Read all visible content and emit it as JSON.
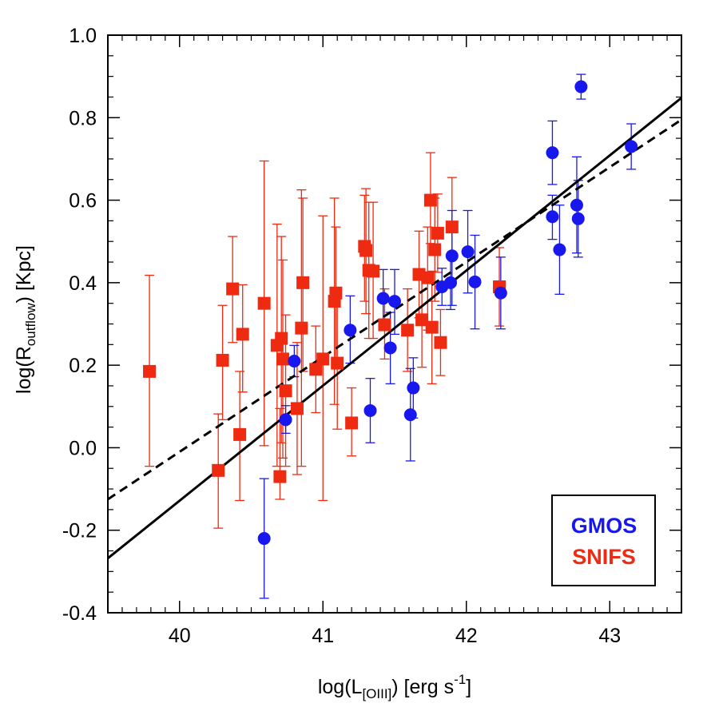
{
  "chart_data": {
    "type": "scatter",
    "title": "",
    "xlabel": {
      "prefix": "log(L",
      "sub": "[OIII]",
      "suffix": ") [erg s",
      "sup": "-1",
      "close": "]"
    },
    "ylabel": {
      "prefix": "log(R",
      "sub": "outflow",
      "suffix": ") [Kpc]"
    },
    "xlim": [
      39.5,
      43.5
    ],
    "ylim": [
      -0.4,
      1.0
    ],
    "x_ticks": [
      40,
      41,
      42,
      43
    ],
    "x_tick_labels": [
      "40",
      "41",
      "42",
      "43"
    ],
    "y_ticks": [
      -0.4,
      -0.2,
      0.0,
      0.2,
      0.4,
      0.6,
      0.8,
      1.0
    ],
    "y_tick_labels": [
      "-0.4",
      "-0.2",
      "0.0",
      "0.2",
      "0.4",
      "0.6",
      "0.8",
      "1.0"
    ],
    "grid": false,
    "legend": {
      "position": "bottom-right",
      "entries": [
        {
          "label": "GMOS",
          "color": "#1818ee"
        },
        {
          "label": "SNIFS",
          "color": "#ee2a10"
        }
      ]
    },
    "fit_lines": [
      {
        "name": "solid fit",
        "style": "solid",
        "color": "#000000",
        "x": [
          39.5,
          43.5
        ],
        "y": [
          -0.268,
          0.848
        ]
      },
      {
        "name": "dashed fit",
        "style": "dashed",
        "color": "#000000",
        "x": [
          39.5,
          43.5
        ],
        "y": [
          -0.125,
          0.795
        ]
      }
    ],
    "series": [
      {
        "name": "SNIFS",
        "marker": "square",
        "color": "#ee2a10",
        "points": [
          {
            "x": 39.79,
            "y": 0.185,
            "lo": -0.045,
            "hi": 0.418
          },
          {
            "x": 40.27,
            "y": -0.055,
            "lo": -0.195,
            "hi": 0.082
          },
          {
            "x": 40.3,
            "y": 0.212,
            "lo": 0.068,
            "hi": 0.345
          },
          {
            "x": 40.37,
            "y": 0.385,
            "lo": 0.255,
            "hi": 0.512
          },
          {
            "x": 40.42,
            "y": 0.032,
            "lo": -0.128,
            "hi": 0.185
          },
          {
            "x": 40.44,
            "y": 0.275,
            "lo": 0.135,
            "hi": 0.395
          },
          {
            "x": 40.59,
            "y": 0.35,
            "lo": 0.005,
            "hi": 0.695
          },
          {
            "x": 40.68,
            "y": 0.248,
            "lo": -0.045,
            "hi": 0.542
          },
          {
            "x": 40.7,
            "y": -0.07,
            "lo": -0.125,
            "hi": 0.095
          },
          {
            "x": 40.71,
            "y": 0.265,
            "lo": 0.012,
            "hi": 0.512
          },
          {
            "x": 40.72,
            "y": 0.215,
            "lo": -0.025,
            "hi": 0.455
          },
          {
            "x": 40.74,
            "y": 0.138,
            "lo": -0.045,
            "hi": 0.322
          },
          {
            "x": 40.82,
            "y": 0.095,
            "lo": -0.065,
            "hi": 0.255
          },
          {
            "x": 40.85,
            "y": 0.29,
            "lo": -0.045,
            "hi": 0.625
          },
          {
            "x": 40.86,
            "y": 0.4,
            "lo": 0.185,
            "hi": 0.605
          },
          {
            "x": 40.95,
            "y": 0.19,
            "lo": 0.085,
            "hi": 0.295
          },
          {
            "x": 41.0,
            "y": 0.215,
            "lo": -0.128,
            "hi": 0.562
          },
          {
            "x": 41.08,
            "y": 0.355,
            "lo": 0.105,
            "hi": 0.605
          },
          {
            "x": 41.09,
            "y": 0.375,
            "lo": 0.215,
            "hi": 0.535
          },
          {
            "x": 41.1,
            "y": 0.205,
            "lo": 0.045,
            "hi": 0.365
          },
          {
            "x": 41.2,
            "y": 0.06,
            "lo": -0.02,
            "hi": 0.145
          },
          {
            "x": 41.29,
            "y": 0.488,
            "lo": 0.355,
            "hi": 0.612
          },
          {
            "x": 41.3,
            "y": 0.478,
            "lo": 0.325,
            "hi": 0.628
          },
          {
            "x": 41.32,
            "y": 0.43,
            "lo": 0.265,
            "hi": 0.595
          },
          {
            "x": 41.35,
            "y": 0.428,
            "lo": 0.265,
            "hi": 0.595
          },
          {
            "x": 41.43,
            "y": 0.298,
            "lo": 0.215,
            "hi": 0.385
          },
          {
            "x": 41.59,
            "y": 0.285,
            "lo": 0.185,
            "hi": 0.385
          },
          {
            "x": 41.67,
            "y": 0.42,
            "lo": 0.315,
            "hi": 0.525
          },
          {
            "x": 41.69,
            "y": 0.31,
            "lo": 0.195,
            "hi": 0.422
          },
          {
            "x": 41.73,
            "y": 0.412,
            "lo": 0.285,
            "hi": 0.535
          },
          {
            "x": 41.75,
            "y": 0.6,
            "lo": 0.495,
            "hi": 0.715
          },
          {
            "x": 41.76,
            "y": 0.292,
            "lo": 0.155,
            "hi": 0.428
          },
          {
            "x": 41.78,
            "y": 0.48,
            "lo": 0.355,
            "hi": 0.605
          },
          {
            "x": 41.8,
            "y": 0.52,
            "lo": 0.425,
            "hi": 0.615
          },
          {
            "x": 41.82,
            "y": 0.255,
            "lo": 0.175,
            "hi": 0.335
          },
          {
            "x": 41.9,
            "y": 0.535,
            "lo": 0.405,
            "hi": 0.655
          },
          {
            "x": 42.23,
            "y": 0.39,
            "lo": 0.295,
            "hi": 0.485
          }
        ]
      },
      {
        "name": "GMOS",
        "marker": "circle",
        "color": "#1818ee",
        "points": [
          {
            "x": 40.59,
            "y": -0.22,
            "lo": -0.365,
            "hi": -0.075
          },
          {
            "x": 40.74,
            "y": 0.068,
            "lo": 0.035,
            "hi": 0.102
          },
          {
            "x": 40.8,
            "y": 0.21,
            "lo": 0.172,
            "hi": 0.248
          },
          {
            "x": 41.19,
            "y": 0.285,
            "lo": 0.205,
            "hi": 0.368
          },
          {
            "x": 41.33,
            "y": 0.09,
            "lo": 0.012,
            "hi": 0.168
          },
          {
            "x": 41.42,
            "y": 0.362,
            "lo": 0.295,
            "hi": 0.432
          },
          {
            "x": 41.47,
            "y": 0.242,
            "lo": 0.155,
            "hi": 0.328
          },
          {
            "x": 41.5,
            "y": 0.355,
            "lo": 0.275,
            "hi": 0.432
          },
          {
            "x": 41.61,
            "y": 0.08,
            "lo": -0.032,
            "hi": 0.192
          },
          {
            "x": 41.63,
            "y": 0.145,
            "lo": 0.072,
            "hi": 0.218
          },
          {
            "x": 41.83,
            "y": 0.39,
            "lo": 0.345,
            "hi": 0.435
          },
          {
            "x": 41.89,
            "y": 0.4,
            "lo": 0.335,
            "hi": 0.465
          },
          {
            "x": 41.9,
            "y": 0.465,
            "lo": 0.345,
            "hi": 0.575
          },
          {
            "x": 42.01,
            "y": 0.475,
            "lo": 0.375,
            "hi": 0.575
          },
          {
            "x": 42.06,
            "y": 0.402,
            "lo": 0.288,
            "hi": 0.515
          },
          {
            "x": 42.24,
            "y": 0.375,
            "lo": 0.288,
            "hi": 0.462
          },
          {
            "x": 42.6,
            "y": 0.715,
            "lo": 0.638,
            "hi": 0.792
          },
          {
            "x": 42.6,
            "y": 0.56,
            "lo": 0.505,
            "hi": 0.612
          },
          {
            "x": 42.65,
            "y": 0.48,
            "lo": 0.372,
            "hi": 0.588
          },
          {
            "x": 42.77,
            "y": 0.588,
            "lo": 0.472,
            "hi": 0.705
          },
          {
            "x": 42.78,
            "y": 0.555,
            "lo": 0.462,
            "hi": 0.648
          },
          {
            "x": 42.8,
            "y": 0.875,
            "lo": 0.845,
            "hi": 0.905
          },
          {
            "x": 43.15,
            "y": 0.73,
            "lo": 0.675,
            "hi": 0.785
          }
        ]
      }
    ]
  }
}
